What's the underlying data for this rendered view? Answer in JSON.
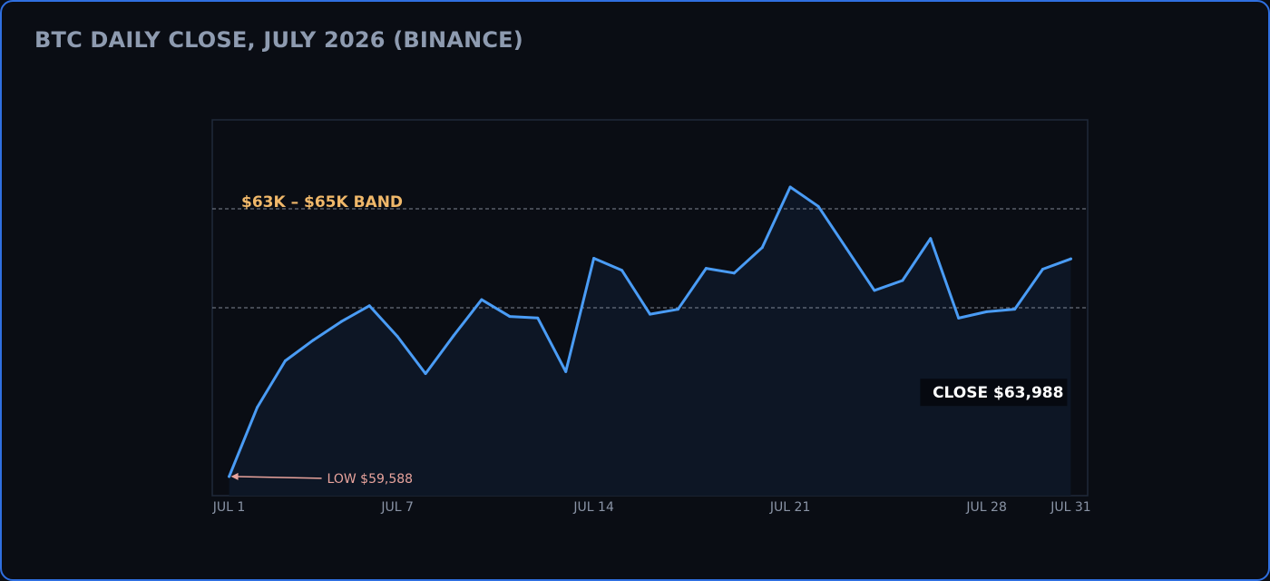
{
  "colors": {
    "line": "#4a9cf5",
    "area": "#0d1625",
    "band": "#9aa3b2",
    "band_label": "#f0b86a",
    "low_annotation": "#e8a39c",
    "close_box": "#060910",
    "plot_border": "#1f2a3a"
  },
  "chart_data": {
    "type": "line",
    "title": "BTC DAILY CLOSE, JULY 2026 (BINANCE)",
    "xlabel": "",
    "ylabel": "",
    "x": [
      1,
      2,
      3,
      4,
      5,
      6,
      7,
      8,
      9,
      10,
      11,
      12,
      13,
      14,
      15,
      16,
      17,
      18,
      19,
      20,
      21,
      22,
      23,
      24,
      25,
      26,
      27,
      28,
      29,
      30,
      31
    ],
    "values": [
      59588,
      60982,
      61927,
      62344,
      62721,
      63041,
      62420,
      61668,
      62435,
      63163,
      62824,
      62792,
      61708,
      64001,
      63756,
      62870,
      62969,
      63796,
      63701,
      64217,
      65441,
      65050,
      64200,
      63350,
      63550,
      64400,
      62790,
      62920,
      62970,
      63780,
      63988
    ],
    "ylim": [
      59200,
      66800
    ],
    "xlim": [
      0.4,
      31.6
    ],
    "grid": false,
    "x_ticks": [
      {
        "value": 1,
        "label": "JUL 1"
      },
      {
        "value": 7,
        "label": "JUL 7"
      },
      {
        "value": 14,
        "label": "JUL 14"
      },
      {
        "value": 21,
        "label": "JUL 21"
      },
      {
        "value": 28,
        "label": "JUL 28"
      },
      {
        "value": 31,
        "label": "JUL 31"
      }
    ],
    "band": {
      "low": 63000,
      "high": 65000,
      "label_prefix": "$63K – ",
      "label": "$63K – $65K BAND"
    },
    "annotations": {
      "low": {
        "x": 1,
        "value": 59588,
        "label": "LOW $59,588"
      },
      "close": {
        "x": 31,
        "value": 63988,
        "label": "CLOSE $63,988"
      }
    }
  }
}
